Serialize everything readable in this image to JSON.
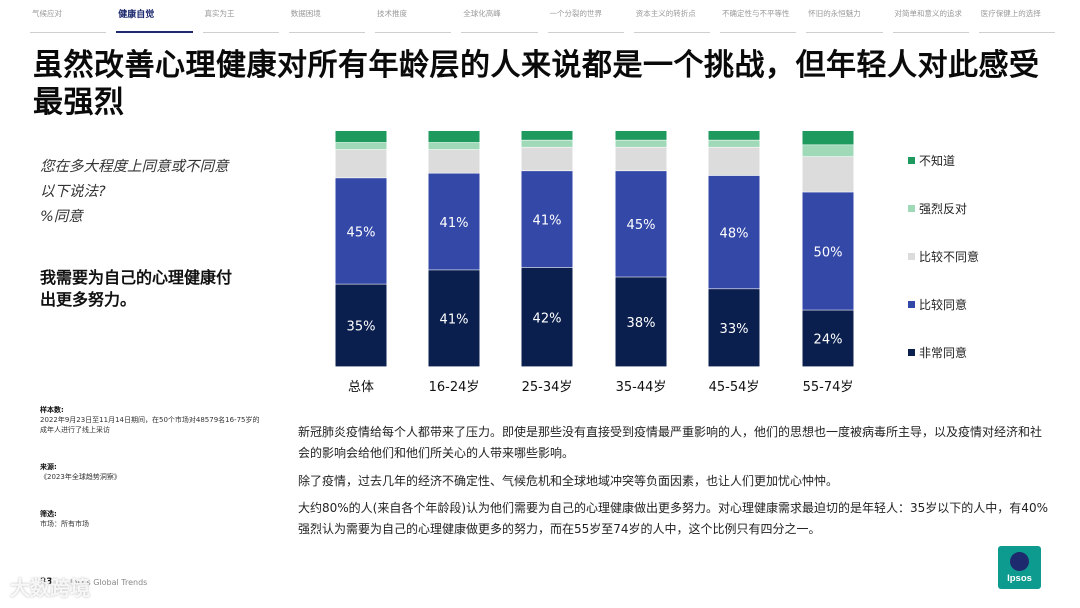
{
  "nav": {
    "items": [
      "气候应对",
      "健康自觉",
      "真实为王",
      "数据困境",
      "技术推度",
      "全球化高峰",
      "一个分裂的世界",
      "资本主义的转折点",
      "不确定性与不平等性",
      "怀旧的永恒魅力",
      "对简单和意义的追求",
      "医疗保健上的选择"
    ],
    "active_index": 1
  },
  "title": "虽然改善心理健康对所有年龄层的人来说都是一个挑战，但年轻人对此感受最强烈",
  "question": "您在多大程度上同意或不同意以下说法?\n%同意",
  "statement": "我需要为自己的心理健康付出更多努力。",
  "meta": {
    "sample_label": "样本数:",
    "sample_text": "2022年9月23日至11月14日期间，在50个市场对48579名16-75岁的成年人进行了线上采访",
    "source_label": "来源:",
    "source_text": "《2023年全球趋势洞察》",
    "filter_label": "筛选:",
    "filter_text": "市场：所有市场"
  },
  "chart_data": {
    "type": "bar",
    "stacked": true,
    "categories": [
      "总体",
      "16-24岁",
      "25-34岁",
      "35-44岁",
      "45-54岁",
      "55-74岁"
    ],
    "series": [
      {
        "name": "非常同意",
        "color": "#0b1f4f",
        "values": [
          35,
          41,
          42,
          38,
          33,
          24
        ],
        "labels": [
          "35%",
          "41%",
          "42%",
          "38%",
          "33%",
          "24%"
        ]
      },
      {
        "name": "比较同意",
        "color": "#3448a8",
        "values": [
          45,
          41,
          41,
          45,
          48,
          50
        ],
        "labels": [
          "45%",
          "41%",
          "41%",
          "45%",
          "48%",
          "50%"
        ]
      },
      {
        "name": "比较不同意",
        "color": "#dcdcdc",
        "values": [
          12,
          10,
          10,
          10,
          12,
          15
        ]
      },
      {
        "name": "强烈反对",
        "color": "#9fd9b8",
        "values": [
          3,
          3,
          3,
          3,
          3,
          5
        ]
      },
      {
        "name": "不知道",
        "color": "#1f9a5f",
        "values": [
          5,
          5,
          4,
          4,
          4,
          6
        ]
      }
    ],
    "ylim": [
      0,
      100
    ],
    "legend_position": "right",
    "legend_order": [
      "不知道",
      "强烈反对",
      "比较不同意",
      "比较同意",
      "非常同意"
    ],
    "grid": false
  },
  "body": [
    "新冠肺炎疫情给每个人都带来了压力。即使是那些没有直接受到疫情最严重影响的人，他们的思想也一度被病毒所主导，以及疫情对经济和社会的影响会给他们和他们所关心的人带来哪些影响。",
    "除了疫情，过去几年的经济不确定性、气候危机和全球地域冲突等负面因素，也让人们更加忧心忡忡。",
    "大约80%的人(来自各个年龄段)认为他们需要为自己的心理健康做出更多努力。对心理健康需求最迫切的是年轻人：35岁以下的人中，有40%强烈认为需要为自己的心理健康做更多的努力，而在55岁至74岁的人中，这个比例只有四分之一。"
  ],
  "footer": {
    "page_number": "33",
    "text": "Ipsos Global Trends"
  },
  "logo": {
    "text": "Ipsos",
    "color": "#0c9b8e"
  },
  "watermark": "大数跨境"
}
